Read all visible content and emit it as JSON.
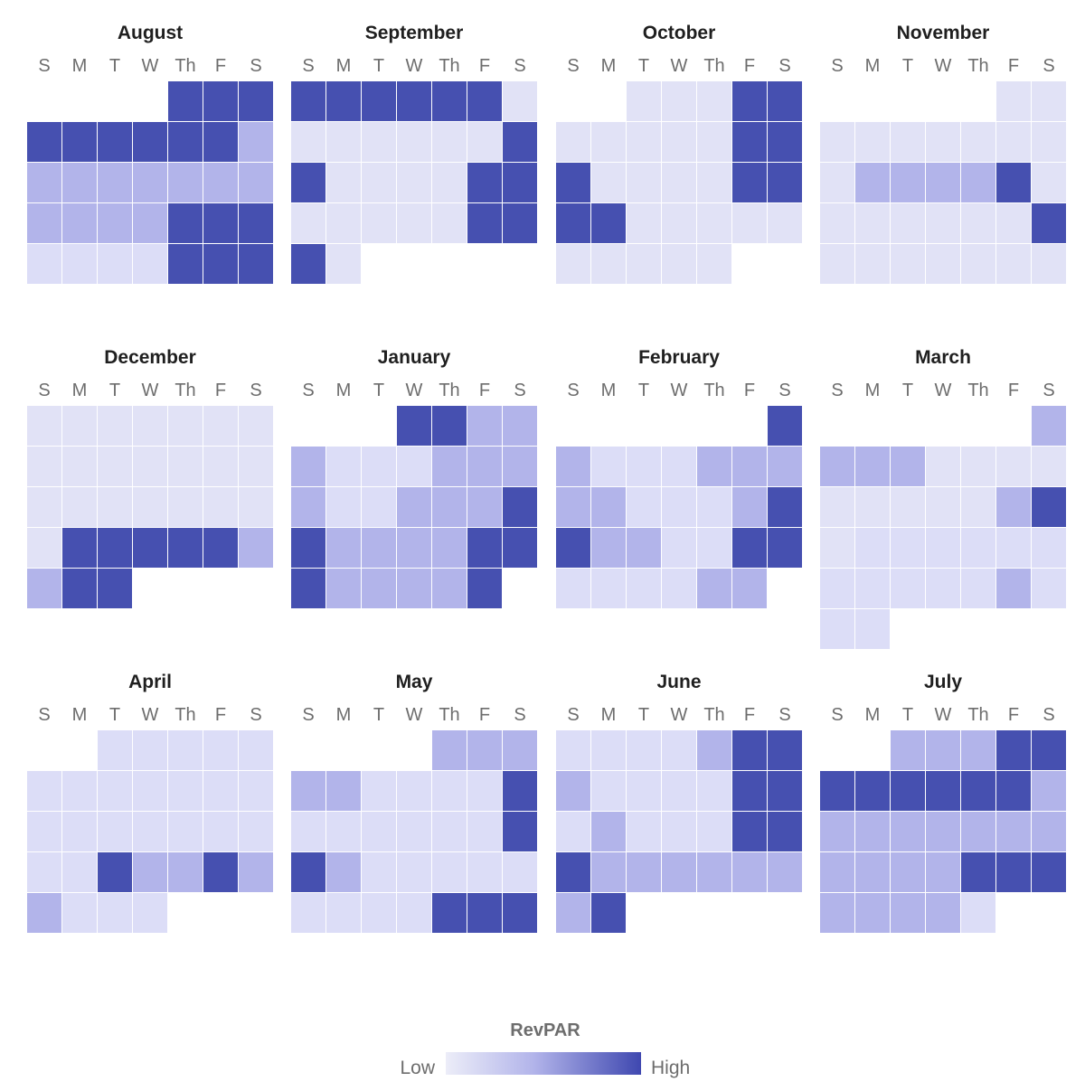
{
  "chart_data": {
    "type": "heatmap",
    "subtype": "calendar",
    "levels": 4,
    "colors": [
      "#e1e2f6",
      "#dcddf7",
      "#b2b4ea",
      "#4650b0"
    ],
    "weekdays": [
      "S",
      "M",
      "T",
      "W",
      "Th",
      "F",
      "S"
    ],
    "legend": {
      "title": "RevPAR",
      "low": "Low",
      "high": "High"
    },
    "months": [
      {
        "name": "August",
        "start": 4,
        "values": [
          3,
          3,
          3,
          3,
          3,
          3,
          3,
          3,
          3,
          2,
          2,
          2,
          2,
          2,
          2,
          2,
          2,
          2,
          2,
          2,
          2,
          3,
          3,
          3,
          1,
          1,
          1,
          1,
          3,
          3,
          3
        ]
      },
      {
        "name": "September",
        "start": 0,
        "values": [
          3,
          3,
          3,
          3,
          3,
          3,
          0,
          0,
          0,
          0,
          0,
          0,
          0,
          3,
          3,
          0,
          0,
          0,
          0,
          3,
          3,
          0,
          0,
          0,
          0,
          0,
          3,
          3,
          3,
          0
        ]
      },
      {
        "name": "October",
        "start": 2,
        "values": [
          0,
          0,
          0,
          3,
          3,
          0,
          0,
          0,
          0,
          0,
          3,
          3,
          3,
          0,
          0,
          0,
          0,
          3,
          3,
          3,
          3,
          0,
          0,
          0,
          0,
          0,
          0,
          0,
          0,
          0,
          0
        ]
      },
      {
        "name": "November",
        "start": 5,
        "values": [
          0,
          0,
          0,
          0,
          0,
          0,
          0,
          0,
          0,
          0,
          2,
          2,
          2,
          2,
          3,
          0,
          0,
          0,
          0,
          0,
          0,
          0,
          3,
          0,
          0,
          0,
          0,
          0,
          0,
          0
        ]
      },
      {
        "name": "December",
        "start": 0,
        "values": [
          0,
          0,
          0,
          0,
          0,
          0,
          0,
          0,
          0,
          0,
          0,
          0,
          0,
          0,
          0,
          0,
          0,
          0,
          0,
          0,
          0,
          0,
          3,
          3,
          3,
          3,
          3,
          2,
          2,
          3,
          3
        ]
      },
      {
        "name": "January",
        "start": 3,
        "values": [
          3,
          3,
          2,
          2,
          2,
          1,
          1,
          1,
          2,
          2,
          2,
          2,
          1,
          1,
          2,
          2,
          2,
          3,
          3,
          2,
          2,
          2,
          2,
          3,
          3,
          3,
          2,
          2,
          2,
          2,
          3
        ]
      },
      {
        "name": "February",
        "start": 6,
        "values": [
          3,
          2,
          1,
          1,
          1,
          2,
          2,
          2,
          2,
          2,
          1,
          1,
          1,
          2,
          3,
          3,
          2,
          2,
          1,
          1,
          3,
          3,
          1,
          1,
          1,
          1,
          2,
          2
        ]
      },
      {
        "name": "March",
        "start": 6,
        "values": [
          2,
          2,
          2,
          2,
          0,
          0,
          0,
          0,
          0,
          0,
          0,
          0,
          0,
          2,
          3,
          0,
          1,
          1,
          1,
          1,
          1,
          1,
          1,
          1,
          1,
          1,
          1,
          2,
          1,
          1,
          1
        ]
      },
      {
        "name": "April",
        "start": 2,
        "values": [
          1,
          1,
          1,
          1,
          1,
          1,
          1,
          1,
          1,
          1,
          1,
          1,
          1,
          1,
          1,
          1,
          1,
          1,
          1,
          1,
          1,
          3,
          2,
          2,
          3,
          2,
          2,
          1,
          1,
          1
        ]
      },
      {
        "name": "May",
        "start": 4,
        "values": [
          2,
          2,
          2,
          2,
          2,
          1,
          1,
          1,
          1,
          3,
          1,
          1,
          1,
          1,
          1,
          1,
          3,
          3,
          2,
          1,
          1,
          1,
          1,
          1,
          1,
          1,
          1,
          1,
          3,
          3,
          3
        ]
      },
      {
        "name": "June",
        "start": 0,
        "values": [
          1,
          1,
          1,
          1,
          2,
          3,
          3,
          2,
          1,
          1,
          1,
          1,
          3,
          3,
          1,
          2,
          1,
          1,
          1,
          3,
          3,
          3,
          2,
          2,
          2,
          2,
          2,
          2,
          2,
          3
        ]
      },
      {
        "name": "July",
        "start": 2,
        "values": [
          2,
          2,
          2,
          3,
          3,
          3,
          3,
          3,
          3,
          3,
          3,
          2,
          2,
          2,
          2,
          2,
          2,
          2,
          2,
          2,
          2,
          2,
          2,
          3,
          3,
          3,
          2,
          2,
          2,
          2,
          1
        ]
      }
    ]
  }
}
